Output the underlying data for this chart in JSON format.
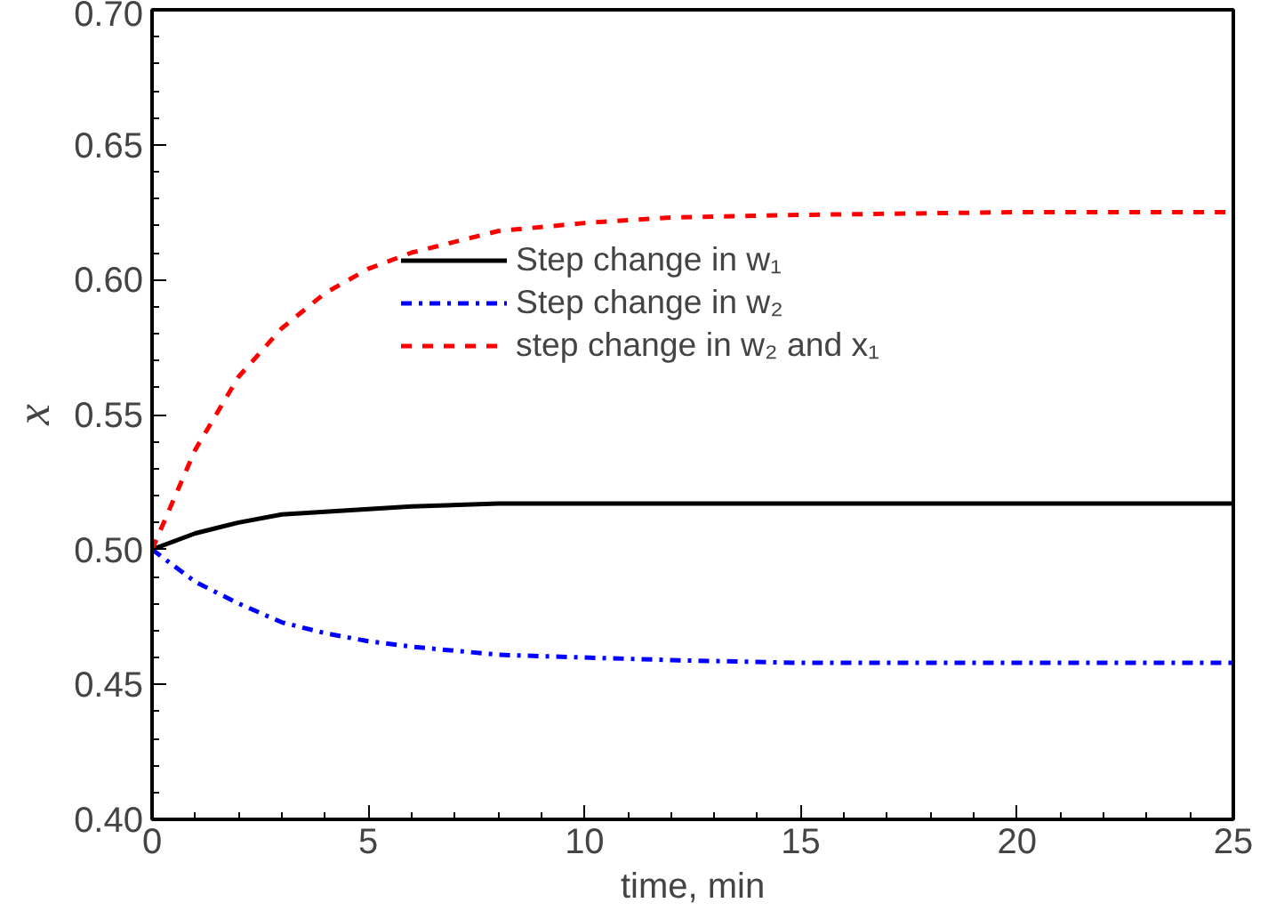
{
  "chart_data": {
    "type": "line",
    "xlabel": "time, min",
    "ylabel": "x",
    "xlim": [
      0,
      25
    ],
    "ylim": [
      0.4,
      0.7
    ],
    "xticks": [
      0,
      5,
      10,
      15,
      20,
      25
    ],
    "yticks": [
      {
        "value": 0.4,
        "label": "0.40"
      },
      {
        "value": 0.45,
        "label": "0.45"
      },
      {
        "value": 0.5,
        "label": "0.50"
      },
      {
        "value": 0.55,
        "label": "0.55"
      },
      {
        "value": 0.6,
        "label": "0.60"
      },
      {
        "value": 0.65,
        "label": "0.65"
      },
      {
        "value": 0.7,
        "label": "0.70"
      }
    ],
    "grid": false,
    "legend": "top right",
    "marker": "none",
    "series": [
      {
        "name": "Step change in w₁",
        "color": "#000000",
        "line_style": "solid",
        "x": [
          0,
          1,
          2,
          3,
          4,
          5,
          6,
          8,
          10,
          12,
          15,
          20,
          25
        ],
        "values": [
          0.5,
          0.506,
          0.51,
          0.513,
          0.514,
          0.515,
          0.516,
          0.517,
          0.517,
          0.517,
          0.517,
          0.517,
          0.517
        ]
      },
      {
        "name": "Step change in w₂",
        "color": "#0000ff",
        "line_style": "dashdot",
        "x": [
          0,
          1,
          2,
          3,
          4,
          5,
          6,
          8,
          10,
          12,
          15,
          20,
          25
        ],
        "values": [
          0.5,
          0.488,
          0.48,
          0.473,
          0.469,
          0.466,
          0.464,
          0.461,
          0.46,
          0.459,
          0.458,
          0.458,
          0.458
        ]
      },
      {
        "name": "step change in w₂ and x₁",
        "color": "#ff0000",
        "line_style": "dashed",
        "x": [
          0,
          1,
          2,
          3,
          4,
          5,
          6,
          8,
          10,
          12,
          15,
          20,
          25
        ],
        "values": [
          0.5,
          0.537,
          0.564,
          0.582,
          0.595,
          0.604,
          0.61,
          0.618,
          0.621,
          0.623,
          0.624,
          0.625,
          0.625
        ]
      }
    ]
  }
}
